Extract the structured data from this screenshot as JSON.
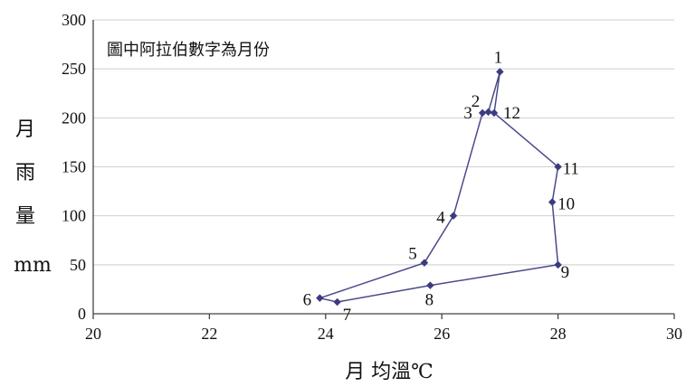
{
  "chart_data": {
    "type": "line",
    "annotation": "圖中阿拉伯數字為月份",
    "xlabel": "月 均溫℃",
    "ylabel_lines": [
      "月",
      "雨",
      "量",
      "mm"
    ],
    "xlim": [
      20,
      30
    ],
    "ylim": [
      0,
      300
    ],
    "x_ticks": [
      "20",
      "22",
      "24",
      "26",
      "28",
      "30"
    ],
    "y_ticks": [
      "0",
      "50",
      "100",
      "150",
      "200",
      "250",
      "300"
    ],
    "grid": "horizontal",
    "series": [
      {
        "points": [
          {
            "label": "1",
            "x": 27.0,
            "y": 247
          },
          {
            "label": "2",
            "x": 26.8,
            "y": 206
          },
          {
            "label": "3",
            "x": 26.7,
            "y": 205
          },
          {
            "label": "4",
            "x": 26.2,
            "y": 100
          },
          {
            "label": "5",
            "x": 25.7,
            "y": 52
          },
          {
            "label": "6",
            "x": 23.9,
            "y": 16
          },
          {
            "label": "7",
            "x": 24.2,
            "y": 12
          },
          {
            "label": "8",
            "x": 25.8,
            "y": 29
          },
          {
            "label": "9",
            "x": 28.0,
            "y": 50
          },
          {
            "label": "10",
            "x": 27.9,
            "y": 114
          },
          {
            "label": "11",
            "x": 28.0,
            "y": 150
          },
          {
            "label": "12",
            "x": 26.9,
            "y": 205
          }
        ]
      }
    ],
    "colors": {
      "line": "#4a4a8c",
      "marker": "#3b3b80"
    }
  }
}
